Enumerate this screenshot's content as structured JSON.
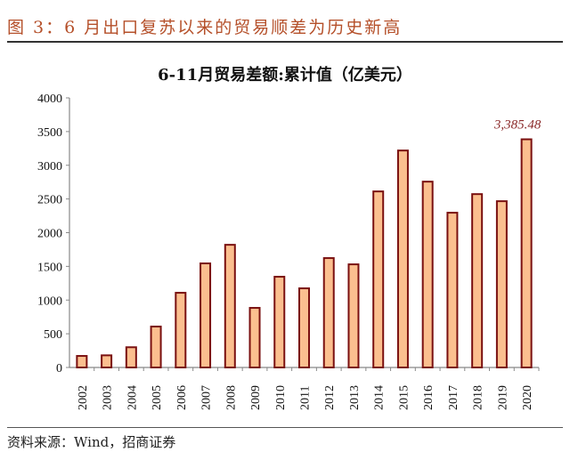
{
  "figure_title": "图 3：6 月出口复苏以来的贸易顺差为历史新高",
  "source": "资料来源：Wind，招商证券",
  "chart_data": {
    "type": "bar",
    "title": "6-11月贸易差额:累计值（亿美元）",
    "categories": [
      "2002",
      "2003",
      "2004",
      "2005",
      "2006",
      "2007",
      "2008",
      "2009",
      "2010",
      "2011",
      "2012",
      "2013",
      "2014",
      "2015",
      "2016",
      "2017",
      "2018",
      "2019",
      "2020"
    ],
    "values": [
      171,
      180,
      300,
      607,
      1108,
      1544,
      1820,
      884,
      1346,
      1174,
      1623,
      1530,
      2612,
      3219,
      2757,
      2296,
      2572,
      2467,
      3385.48
    ],
    "ylim": [
      0,
      4000
    ],
    "yticks": [
      "0",
      "500",
      "1000",
      "1500",
      "2000",
      "2500",
      "3000",
      "3500",
      "4000"
    ],
    "annotation": "3,385.48",
    "grid": false,
    "colors": {
      "bar_fill": "#fbbf8f",
      "bar_edge": "#7a1010",
      "annotation": "#8b2a2a",
      "axis": "#888888"
    }
  }
}
